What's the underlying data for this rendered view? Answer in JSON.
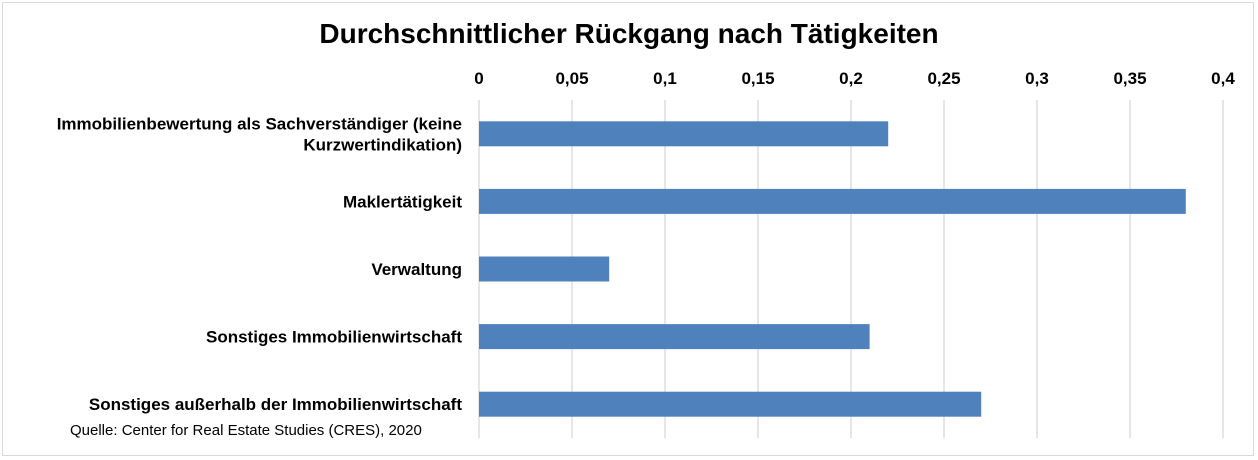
{
  "chart_data": {
    "type": "bar",
    "orientation": "horizontal",
    "title": "Durchschnittlicher Rückgang nach Tätigkeiten",
    "categories": [
      [
        "Immobilienbewertung als Sachverständiger (keine",
        "Kurzwertindikation)"
      ],
      [
        "Maklertätigkeit"
      ],
      [
        "Verwaltung"
      ],
      [
        "Sonstiges Immobilienwirtschaft"
      ],
      [
        "Sonstiges außerhalb der Immobilienwirtschaft"
      ]
    ],
    "values": [
      0.22,
      0.38,
      0.07,
      0.21,
      0.27
    ],
    "xlim": [
      0,
      0.4
    ],
    "xticks": [
      "0",
      "0,05",
      "0,1",
      "0,15",
      "0,2",
      "0,25",
      "0,3",
      "0,35",
      "0,4"
    ],
    "xtick_values": [
      0,
      0.05,
      0.1,
      0.15,
      0.2,
      0.25,
      0.3,
      0.35,
      0.4
    ],
    "axis_position": "top",
    "grid": true,
    "bar_color": "#4f81bd",
    "grid_color": "#d9d9d9"
  },
  "source": "Quelle: Center for Real Estate Studies (CRES), 2020"
}
